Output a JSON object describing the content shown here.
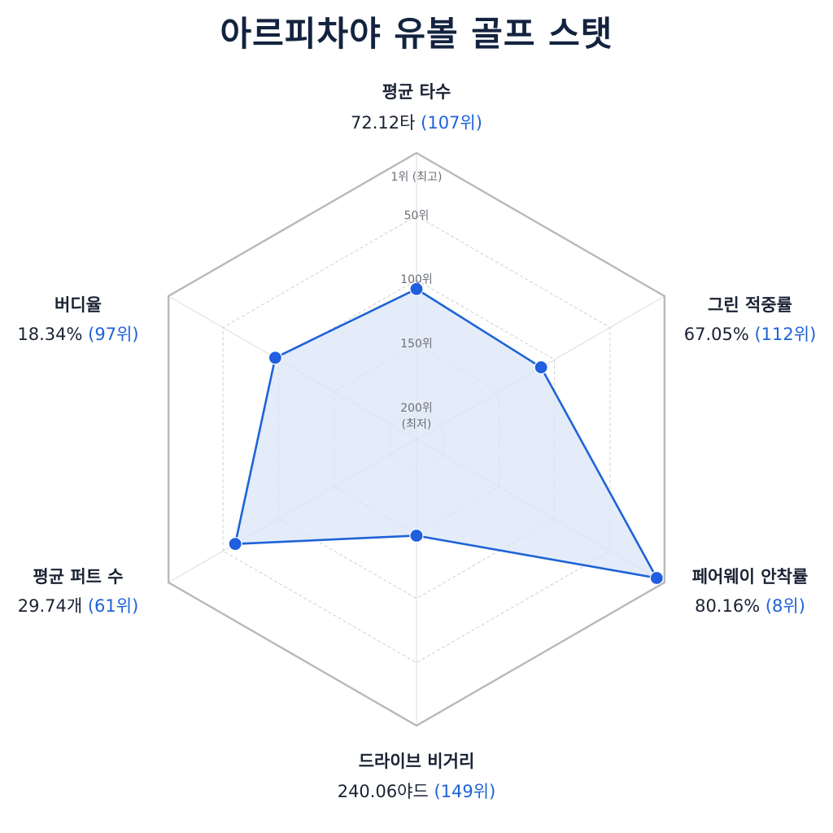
{
  "chart_data": {
    "type": "radar",
    "title": "아르피차야 유볼 골프 스탯",
    "rank_scale": {
      "best": 1,
      "worst": 200
    },
    "tick_labels": [
      {
        "rank": 1,
        "lines": [
          "1위 (최고)"
        ]
      },
      {
        "rank": 50,
        "lines": [
          "50위"
        ]
      },
      {
        "rank": 100,
        "lines": [
          "100위"
        ]
      },
      {
        "rank": 150,
        "lines": [
          "150위"
        ]
      },
      {
        "rank": 200,
        "lines": [
          "200위",
          "(최저)"
        ]
      }
    ],
    "axes": [
      {
        "label": "평균 타수",
        "value_text": "72.12타",
        "rank_text": "(107위)",
        "rank": 107
      },
      {
        "label": "그린 적중률",
        "value_text": "67.05%",
        "rank_text": "(112위)",
        "rank": 112
      },
      {
        "label": "페어웨이 안착률",
        "value_text": "80.16%",
        "rank_text": "(8위)",
        "rank": 8
      },
      {
        "label": "드라이브 비거리",
        "value_text": "240.06야드",
        "rank_text": "(149위)",
        "rank": 149
      },
      {
        "label": "평균 퍼트 수",
        "value_text": "29.74개",
        "rank_text": "(61위)",
        "rank": 61
      },
      {
        "label": "버디율",
        "value_text": "18.34%",
        "rank_text": "(97위)",
        "rank": 97
      }
    ],
    "colors": {
      "series_line": "#1e63d6",
      "series_fill": "#dbe6f8",
      "point": "#1f5fe0",
      "outer_frame": "#b9b9b9",
      "inner_grid": "#cfcfcf"
    }
  }
}
